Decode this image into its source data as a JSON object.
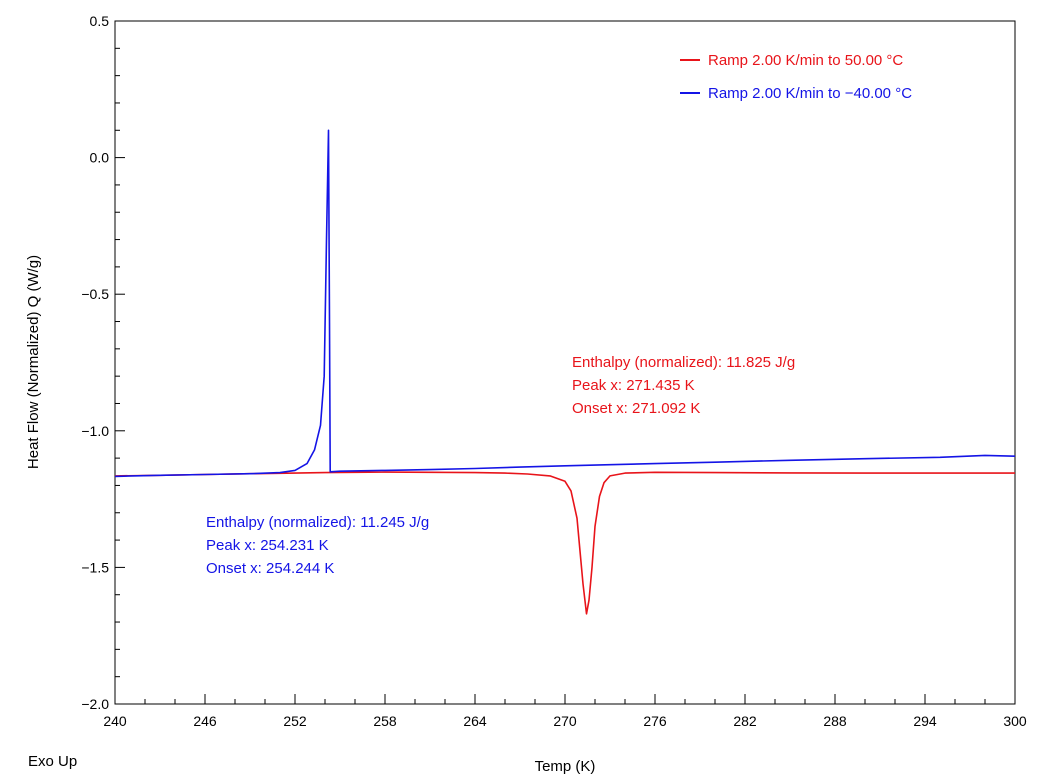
{
  "chart_data": {
    "type": "line",
    "xlabel": "Temp  (K)",
    "ylabel": "Heat Flow (Normalized)  Q  (W/g)",
    "corner_label": "Exo Up",
    "xlim": [
      240,
      300
    ],
    "ylim": [
      -2.0,
      0.5
    ],
    "x_ticks": [
      "240",
      "246",
      "252",
      "258",
      "264",
      "270",
      "276",
      "282",
      "288",
      "294",
      "300"
    ],
    "y_ticks": [
      "0.5",
      "0.0",
      "−0.5",
      "−1.0",
      "−1.5",
      "−2.0"
    ],
    "grid": false,
    "legend_position": "top-right",
    "series": [
      {
        "name": "Ramp 2.00 K/min to 50.00  °C",
        "color": "#e8141a",
        "x": [
          240,
          243,
          246,
          249,
          252,
          254,
          256,
          258,
          261,
          264,
          266,
          267.5,
          269,
          270,
          270.4,
          270.8,
          271.0,
          271.2,
          271.435,
          271.6,
          271.8,
          272.0,
          272.3,
          272.6,
          273,
          274,
          276,
          280,
          285,
          290,
          295,
          300
        ],
        "y": [
          -1.165,
          -1.163,
          -1.16,
          -1.157,
          -1.155,
          -1.153,
          -1.152,
          -1.151,
          -1.152,
          -1.153,
          -1.155,
          -1.158,
          -1.165,
          -1.185,
          -1.22,
          -1.32,
          -1.44,
          -1.56,
          -1.67,
          -1.62,
          -1.5,
          -1.35,
          -1.24,
          -1.19,
          -1.165,
          -1.155,
          -1.152,
          -1.153,
          -1.154,
          -1.155,
          -1.155,
          -1.155
        ]
      },
      {
        "name": "Ramp 2.00 K/min to −40.00  °C",
        "color": "#1414e6",
        "x": [
          240,
          243,
          246,
          249,
          251,
          252,
          252.8,
          253.3,
          253.7,
          253.95,
          254.1,
          254.231,
          254.3,
          254.35,
          255,
          258,
          261,
          264,
          267,
          270,
          273,
          276,
          280,
          285,
          290,
          295,
          298,
          300
        ],
        "y": [
          -1.167,
          -1.163,
          -1.16,
          -1.157,
          -1.153,
          -1.145,
          -1.12,
          -1.07,
          -0.98,
          -0.8,
          -0.3,
          0.1,
          -0.6,
          -1.15,
          -1.148,
          -1.145,
          -1.142,
          -1.138,
          -1.133,
          -1.128,
          -1.124,
          -1.12,
          -1.115,
          -1.108,
          -1.102,
          -1.097,
          -1.09,
          -1.093
        ]
      }
    ],
    "annotations": [
      {
        "color": "#e8141a",
        "lines": [
          "Enthalpy (normalized): 11.825 J/g",
          "Peak x: 271.435 K",
          "Onset x: 271.092 K"
        ]
      },
      {
        "color": "#1414e6",
        "lines": [
          "Enthalpy (normalized): 11.245 J/g",
          "Peak x: 254.231 K",
          "Onset x: 254.244 K"
        ]
      }
    ]
  }
}
